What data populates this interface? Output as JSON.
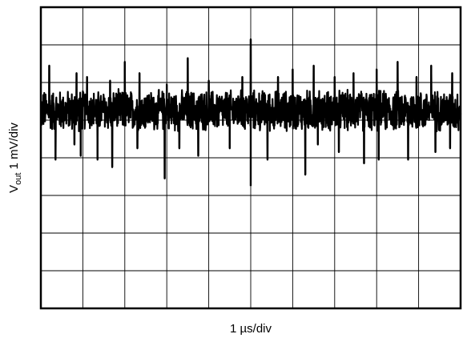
{
  "chart_data": {
    "type": "line",
    "title": "",
    "xlabel": "1 µs/div",
    "ylabel": {
      "symbol": "V",
      "subscript": "out",
      "scale": " 1 mV/div"
    },
    "x_divisions": 10,
    "y_divisions": 8,
    "x_unit": "µs",
    "y_unit": "mV",
    "xlim": [
      0,
      10
    ],
    "ylim": [
      -5.25,
      2.75
    ],
    "grid": true,
    "legend": "none",
    "series": [
      {
        "color": "#000000",
        "signal": "ripple noise",
        "baseline": 0,
        "noise_band_mV": [
          -0.6,
          0.6
        ],
        "spikes": [
          {
            "x": 0.2,
            "y": 1.2
          },
          {
            "x": 0.35,
            "y": -1.3
          },
          {
            "x": 0.85,
            "y": 1.0
          },
          {
            "x": 0.8,
            "y": -0.9
          },
          {
            "x": 0.95,
            "y": -1.2
          },
          {
            "x": 1.1,
            "y": 0.9
          },
          {
            "x": 1.35,
            "y": -1.3
          },
          {
            "x": 1.65,
            "y": 0.8
          },
          {
            "x": 1.7,
            "y": -1.5
          },
          {
            "x": 2.0,
            "y": 1.3
          },
          {
            "x": 2.35,
            "y": 1.0
          },
          {
            "x": 2.3,
            "y": -1.0
          },
          {
            "x": 2.95,
            "y": -1.8
          },
          {
            "x": 3.0,
            "y": 0.7
          },
          {
            "x": 3.3,
            "y": -1.0
          },
          {
            "x": 3.5,
            "y": 1.4
          },
          {
            "x": 3.75,
            "y": -1.2
          },
          {
            "x": 4.0,
            "y": 0.8
          },
          {
            "x": 4.5,
            "y": -1.0
          },
          {
            "x": 4.8,
            "y": 0.9
          },
          {
            "x": 5.0,
            "y": 1.9
          },
          {
            "x": 5.0,
            "y": -2.0
          },
          {
            "x": 5.4,
            "y": -1.3
          },
          {
            "x": 5.65,
            "y": 0.9
          },
          {
            "x": 6.0,
            "y": 1.1
          },
          {
            "x": 6.3,
            "y": -1.7
          },
          {
            "x": 6.5,
            "y": 1.2
          },
          {
            "x": 6.6,
            "y": -0.9
          },
          {
            "x": 7.1,
            "y": -1.1
          },
          {
            "x": 7.0,
            "y": 0.9
          },
          {
            "x": 7.45,
            "y": 1.0
          },
          {
            "x": 7.7,
            "y": -1.4
          },
          {
            "x": 8.0,
            "y": 1.1
          },
          {
            "x": 8.05,
            "y": -1.3
          },
          {
            "x": 8.5,
            "y": 1.3
          },
          {
            "x": 8.95,
            "y": 0.9
          },
          {
            "x": 8.75,
            "y": -1.3
          },
          {
            "x": 9.3,
            "y": 1.2
          },
          {
            "x": 9.4,
            "y": -1.1
          },
          {
            "x": 9.8,
            "y": 1.0
          },
          {
            "x": 9.75,
            "y": -1.0
          }
        ]
      }
    ]
  }
}
